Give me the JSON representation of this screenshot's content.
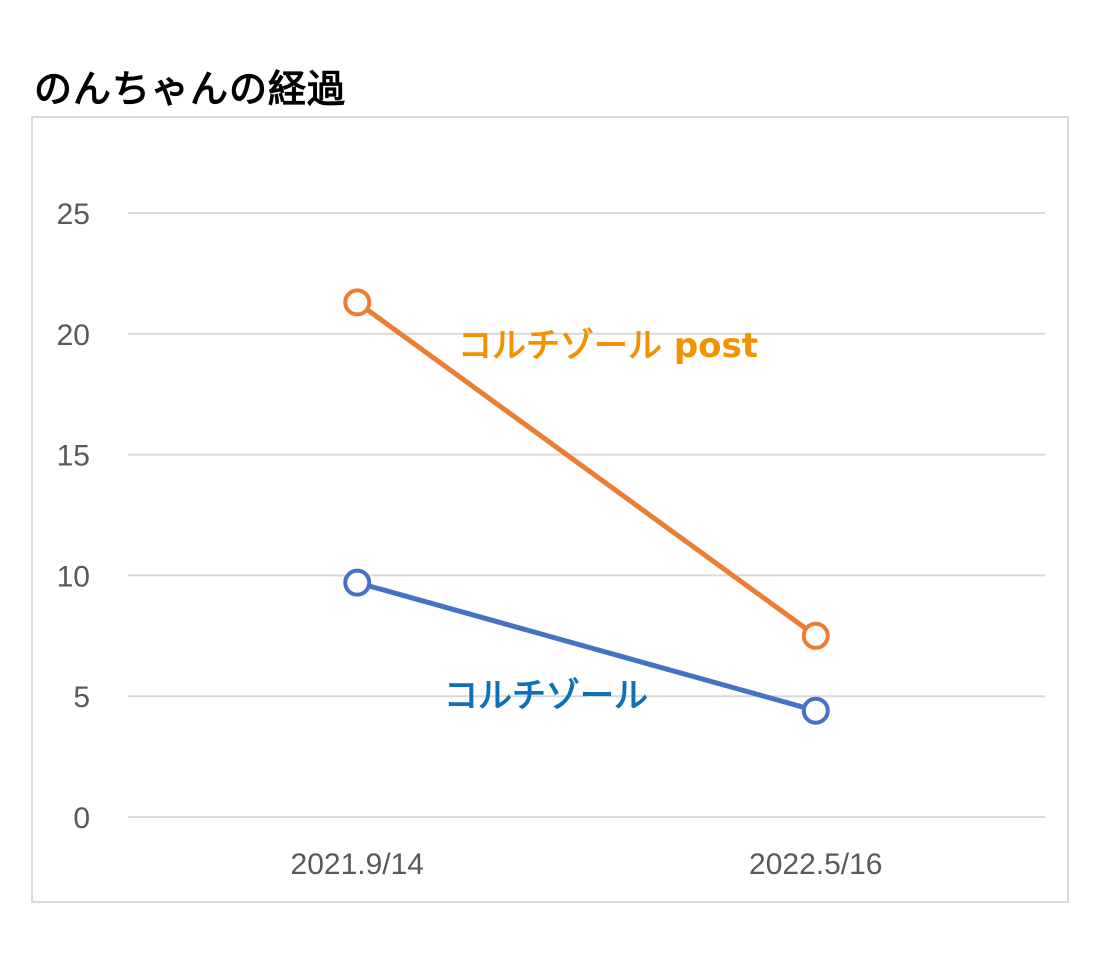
{
  "title": "のんちゃんの経過",
  "chart_data": {
    "type": "line",
    "categories": [
      "2021.9/14",
      "2022.5/16"
    ],
    "ylim": [
      0,
      25
    ],
    "yticks": [
      0,
      5,
      10,
      15,
      20,
      25
    ],
    "grid": true,
    "series": [
      {
        "name": "コルチゾール post",
        "values": [
          21.3,
          7.5
        ],
        "color": "#ED7D31"
      },
      {
        "name": "コルチゾール",
        "values": [
          9.7,
          4.4
        ],
        "color": "#4472C4"
      }
    ],
    "annotation_colors": {
      "コルチゾール post": "#F39200",
      "コルチゾール": "#0E71B8"
    },
    "gridline_color": "#d9d9d9",
    "tick_color": "#595959"
  }
}
